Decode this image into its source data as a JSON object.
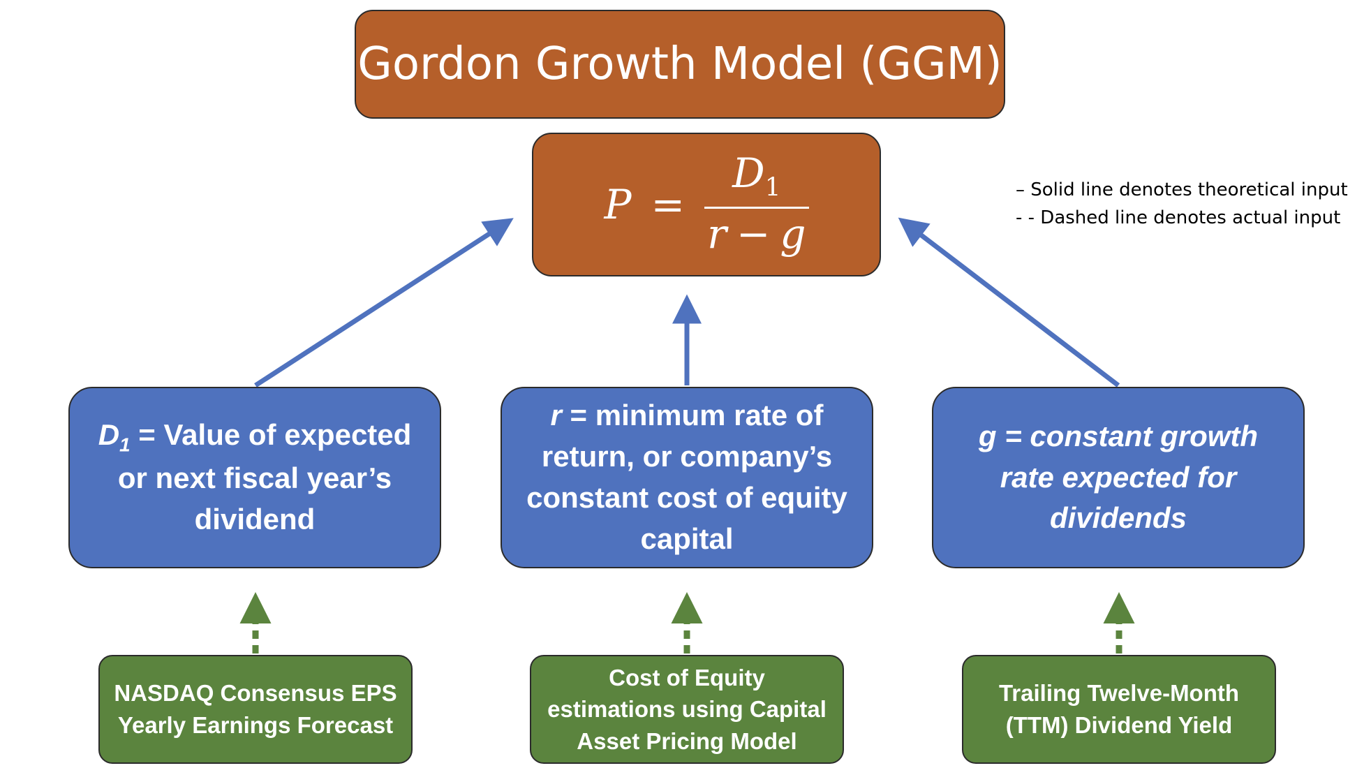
{
  "title": "Gordon Growth Model (GGM)",
  "formula": {
    "lhs": "P",
    "equals": "=",
    "numerator": "D",
    "numerator_subscript": "1",
    "denominator_left": "r",
    "minus": "−",
    "denominator_right": "g"
  },
  "legend": {
    "solid": "–  Solid line denotes theoretical input",
    "dashed": "- - Dashed line denotes actual input"
  },
  "inputs": {
    "d1": {
      "symbol": "D",
      "subscript": "1",
      "text": " = Value of expected or next fiscal year’s dividend"
    },
    "r": {
      "symbol": "r",
      "text": " = minimum rate of return, or company’s constant cost of equity capital"
    },
    "g": {
      "text": "g = constant growth rate expected for dividends"
    }
  },
  "sources": {
    "d1": "NASDAQ Consensus EPS Yearly Earnings Forecast",
    "r": "Cost of Equity estimations using Capital Asset Pricing Model",
    "g": "Trailing Twelve-Month (TTM) Dividend Yield"
  },
  "colors": {
    "title_fill": "#b55f2a",
    "input_fill": "#4f72be",
    "source_fill": "#5b843e",
    "theoretical_arrow": "#4f72be",
    "actual_arrow": "#5b843e"
  }
}
